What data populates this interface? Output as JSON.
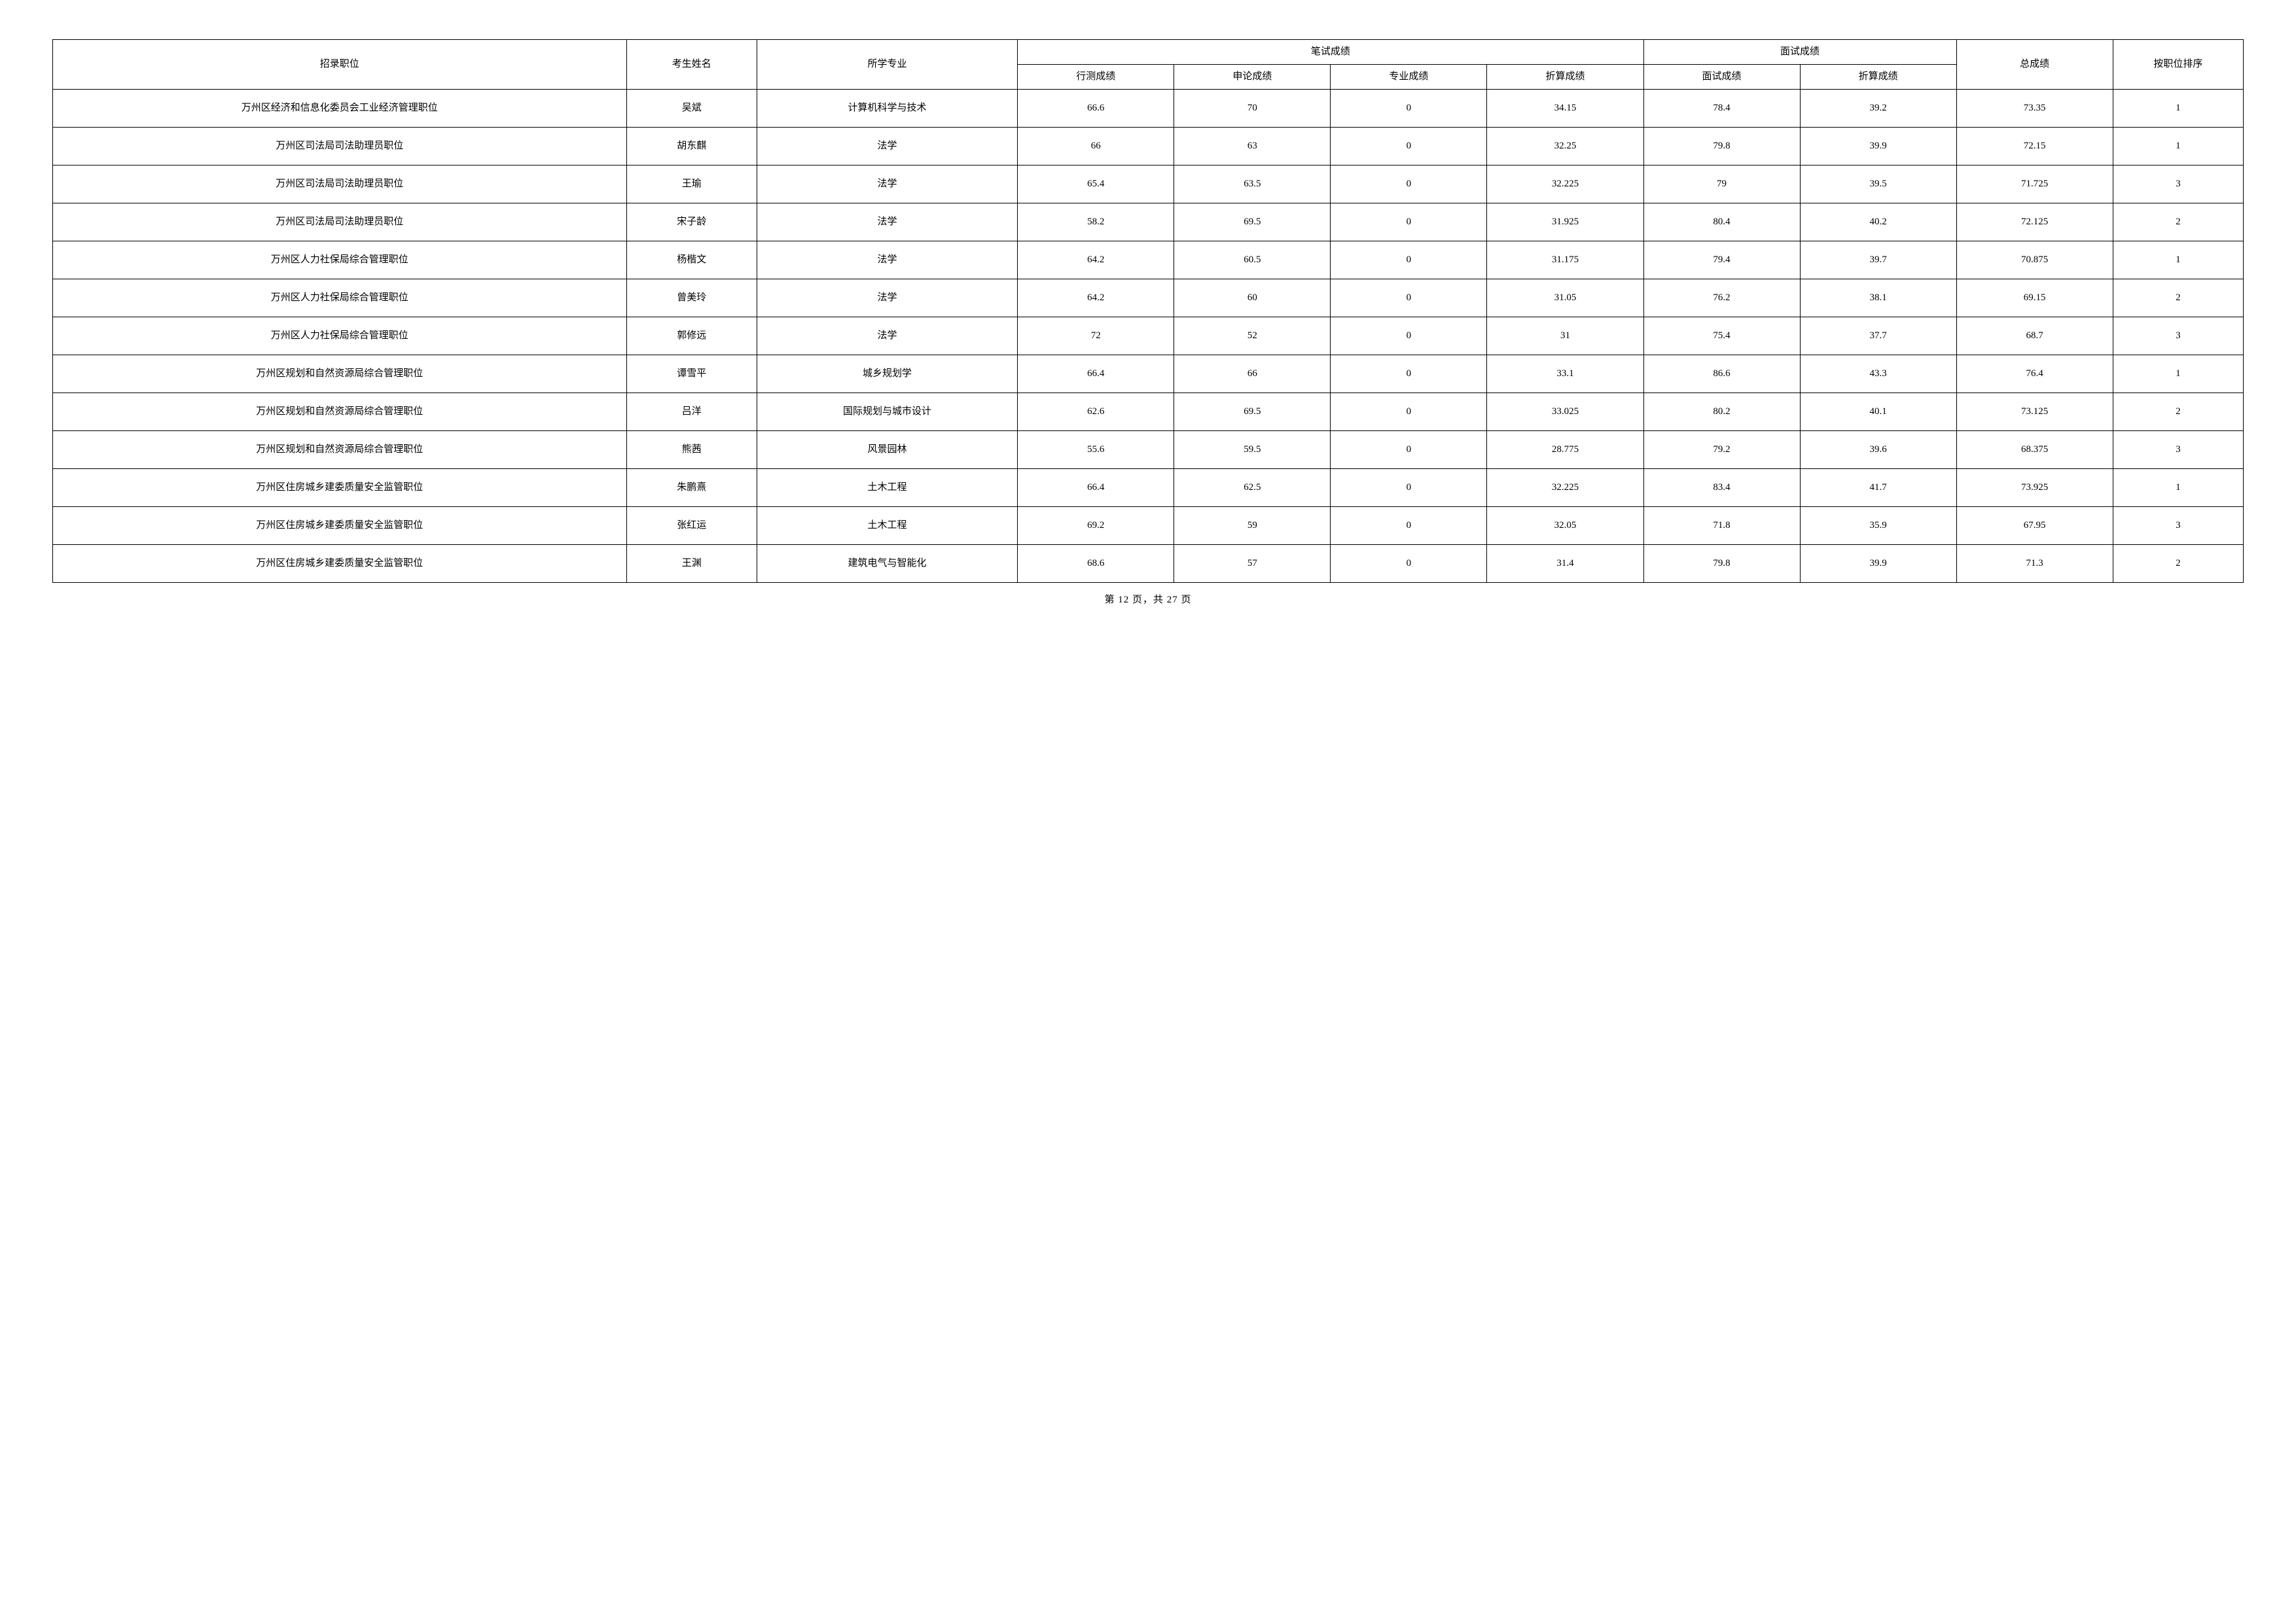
{
  "headers": {
    "position": "招录职位",
    "name": "考生姓名",
    "major": "所学专业",
    "written_group": "笔试成绩",
    "interview_group": "面试成绩",
    "total": "总成绩",
    "rank": "按职位排序",
    "xingce": "行测成绩",
    "shenlun": "申论成绩",
    "zhuanye": "专业成绩",
    "written_converted": "折算成绩",
    "interview": "面试成绩",
    "interview_converted": "折算成绩"
  },
  "rows": [
    {
      "position": "万州区经济和信息化委员会工业经济管理职位",
      "name": "吴斌",
      "major": "计算机科学与技术",
      "xingce": "66.6",
      "shenlun": "70",
      "zhuanye": "0",
      "wconv": "34.15",
      "interview": "78.4",
      "iconv": "39.2",
      "total": "73.35",
      "rank": "1"
    },
    {
      "position": "万州区司法局司法助理员职位",
      "name": "胡东麒",
      "major": "法学",
      "xingce": "66",
      "shenlun": "63",
      "zhuanye": "0",
      "wconv": "32.25",
      "interview": "79.8",
      "iconv": "39.9",
      "total": "72.15",
      "rank": "1"
    },
    {
      "position": "万州区司法局司法助理员职位",
      "name": "王瑜",
      "major": "法学",
      "xingce": "65.4",
      "shenlun": "63.5",
      "zhuanye": "0",
      "wconv": "32.225",
      "interview": "79",
      "iconv": "39.5",
      "total": "71.725",
      "rank": "3"
    },
    {
      "position": "万州区司法局司法助理员职位",
      "name": "宋子龄",
      "major": "法学",
      "xingce": "58.2",
      "shenlun": "69.5",
      "zhuanye": "0",
      "wconv": "31.925",
      "interview": "80.4",
      "iconv": "40.2",
      "total": "72.125",
      "rank": "2"
    },
    {
      "position": "万州区人力社保局综合管理职位",
      "name": "杨楷文",
      "major": "法学",
      "xingce": "64.2",
      "shenlun": "60.5",
      "zhuanye": "0",
      "wconv": "31.175",
      "interview": "79.4",
      "iconv": "39.7",
      "total": "70.875",
      "rank": "1"
    },
    {
      "position": "万州区人力社保局综合管理职位",
      "name": "曾美玲",
      "major": "法学",
      "xingce": "64.2",
      "shenlun": "60",
      "zhuanye": "0",
      "wconv": "31.05",
      "interview": "76.2",
      "iconv": "38.1",
      "total": "69.15",
      "rank": "2"
    },
    {
      "position": "万州区人力社保局综合管理职位",
      "name": "郭修远",
      "major": "法学",
      "xingce": "72",
      "shenlun": "52",
      "zhuanye": "0",
      "wconv": "31",
      "interview": "75.4",
      "iconv": "37.7",
      "total": "68.7",
      "rank": "3"
    },
    {
      "position": "万州区规划和自然资源局综合管理职位",
      "name": "谭雪平",
      "major": "城乡规划学",
      "xingce": "66.4",
      "shenlun": "66",
      "zhuanye": "0",
      "wconv": "33.1",
      "interview": "86.6",
      "iconv": "43.3",
      "total": "76.4",
      "rank": "1"
    },
    {
      "position": "万州区规划和自然资源局综合管理职位",
      "name": "吕洋",
      "major": "国际规划与城市设计",
      "xingce": "62.6",
      "shenlun": "69.5",
      "zhuanye": "0",
      "wconv": "33.025",
      "interview": "80.2",
      "iconv": "40.1",
      "total": "73.125",
      "rank": "2"
    },
    {
      "position": "万州区规划和自然资源局综合管理职位",
      "name": "熊茜",
      "major": "风景园林",
      "xingce": "55.6",
      "shenlun": "59.5",
      "zhuanye": "0",
      "wconv": "28.775",
      "interview": "79.2",
      "iconv": "39.6",
      "total": "68.375",
      "rank": "3"
    },
    {
      "position": "万州区住房城乡建委质量安全监管职位",
      "name": "朱鹏熹",
      "major": "土木工程",
      "xingce": "66.4",
      "shenlun": "62.5",
      "zhuanye": "0",
      "wconv": "32.225",
      "interview": "83.4",
      "iconv": "41.7",
      "total": "73.925",
      "rank": "1"
    },
    {
      "position": "万州区住房城乡建委质量安全监管职位",
      "name": "张红运",
      "major": "土木工程",
      "xingce": "69.2",
      "shenlun": "59",
      "zhuanye": "0",
      "wconv": "32.05",
      "interview": "71.8",
      "iconv": "35.9",
      "total": "67.95",
      "rank": "3"
    },
    {
      "position": "万州区住房城乡建委质量安全监管职位",
      "name": "王渊",
      "major": "建筑电气与智能化",
      "xingce": "68.6",
      "shenlun": "57",
      "zhuanye": "0",
      "wconv": "31.4",
      "interview": "79.8",
      "iconv": "39.9",
      "total": "71.3",
      "rank": "2"
    }
  ],
  "footer": {
    "text": "第 12 页，共 27 页"
  }
}
